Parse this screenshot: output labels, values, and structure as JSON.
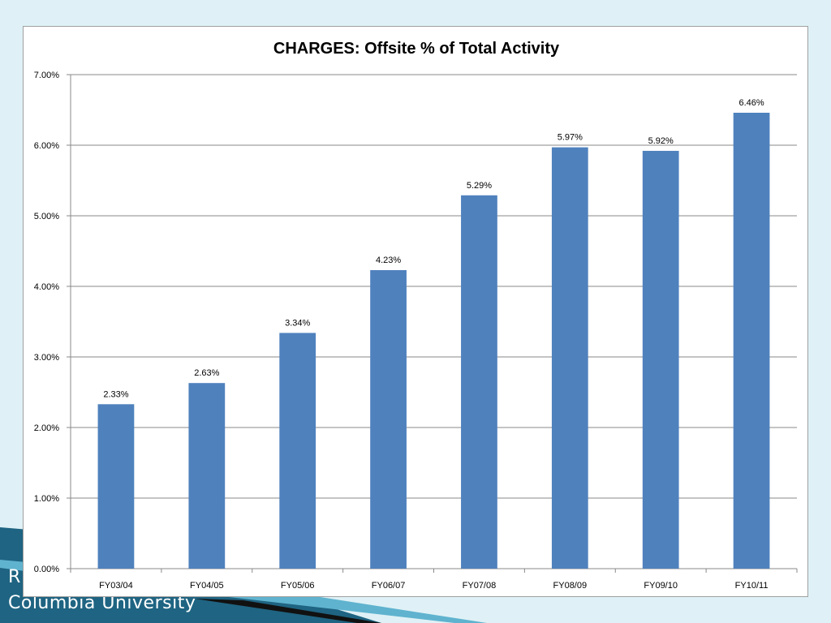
{
  "slide": {
    "footer_line1": "R",
    "footer_line2": "Columbia University"
  },
  "colors": {
    "background": "#dff1f6",
    "bar": "#4f81bd",
    "gridline": "#898989",
    "footer_band": "#1a5e7a"
  },
  "chart_data": {
    "type": "bar",
    "title": "CHARGES: Offsite % of Total Activity",
    "xlabel": "",
    "ylabel": "",
    "categories": [
      "FY03/04",
      "FY04/05",
      "FY05/06",
      "FY06/07",
      "FY07/08",
      "FY08/09",
      "FY09/10",
      "FY10/11"
    ],
    "values": [
      2.33,
      2.63,
      3.34,
      4.23,
      5.29,
      5.97,
      5.92,
      6.46
    ],
    "value_labels": [
      "2.33%",
      "2.63%",
      "3.34%",
      "4.23%",
      "5.29%",
      "5.97%",
      "5.92%",
      "6.46%"
    ],
    "ylim": [
      0,
      7
    ],
    "yticks": [
      0,
      1,
      2,
      3,
      4,
      5,
      6,
      7
    ],
    "ytick_labels": [
      "0.00%",
      "1.00%",
      "2.00%",
      "3.00%",
      "4.00%",
      "5.00%",
      "6.00%",
      "7.00%"
    ],
    "grid": true,
    "legend": "none"
  }
}
